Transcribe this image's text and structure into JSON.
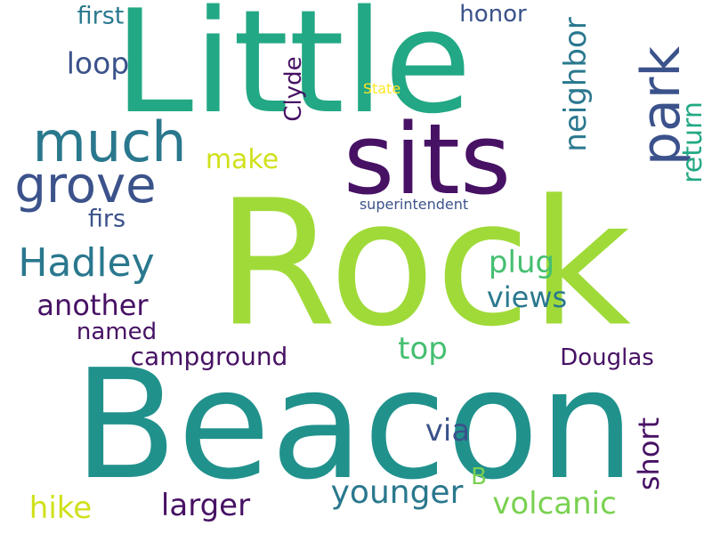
{
  "words": [
    {
      "text": "Little",
      "color": "#22a884",
      "rotated": false
    },
    {
      "text": "Rock",
      "color": "#a0da39",
      "rotated": false
    },
    {
      "text": "Beacon",
      "color": "#21918c",
      "rotated": false
    },
    {
      "text": "sits",
      "color": "#471164",
      "rotated": false
    },
    {
      "text": "much",
      "color": "#2a788e",
      "rotated": false
    },
    {
      "text": "park",
      "color": "#3b528b",
      "rotated": true
    },
    {
      "text": "grove",
      "color": "#3b528b",
      "rotated": false
    },
    {
      "text": "Hadley",
      "color": "#2a788e",
      "rotated": false
    },
    {
      "text": "first",
      "color": "#2a788e",
      "rotated": false
    },
    {
      "text": "loop",
      "color": "#3b528b",
      "rotated": false
    },
    {
      "text": "honor",
      "color": "#3b528b",
      "rotated": false
    },
    {
      "text": "neighbor",
      "color": "#2a788e",
      "rotated": true
    },
    {
      "text": "return",
      "color": "#22a884",
      "rotated": true
    },
    {
      "text": "Clyde",
      "color": "#471164",
      "rotated": true
    },
    {
      "text": "State",
      "color": "#fde725",
      "rotated": false
    },
    {
      "text": "make",
      "color": "#d0e11c",
      "rotated": false
    },
    {
      "text": "superintendent",
      "color": "#3b528b",
      "rotated": false
    },
    {
      "text": "firs",
      "color": "#3b528b",
      "rotated": false
    },
    {
      "text": "plug",
      "color": "#44bf70",
      "rotated": false
    },
    {
      "text": "views",
      "color": "#2a788e",
      "rotated": false
    },
    {
      "text": "another",
      "color": "#471164",
      "rotated": false
    },
    {
      "text": "named",
      "color": "#471164",
      "rotated": false
    },
    {
      "text": "top",
      "color": "#44bf70",
      "rotated": false
    },
    {
      "text": "Douglas",
      "color": "#471164",
      "rotated": false
    },
    {
      "text": "campground",
      "color": "#471164",
      "rotated": false
    },
    {
      "text": "via",
      "color": "#3b528b",
      "rotated": false
    },
    {
      "text": "short",
      "color": "#471164",
      "rotated": true
    },
    {
      "text": "B",
      "color": "#7ad151",
      "rotated": false
    },
    {
      "text": "younger",
      "color": "#2a788e",
      "rotated": false
    },
    {
      "text": "volcanic",
      "color": "#7ad151",
      "rotated": false
    },
    {
      "text": "larger",
      "color": "#471164",
      "rotated": false
    },
    {
      "text": "hike",
      "color": "#d0e11c",
      "rotated": false
    }
  ]
}
